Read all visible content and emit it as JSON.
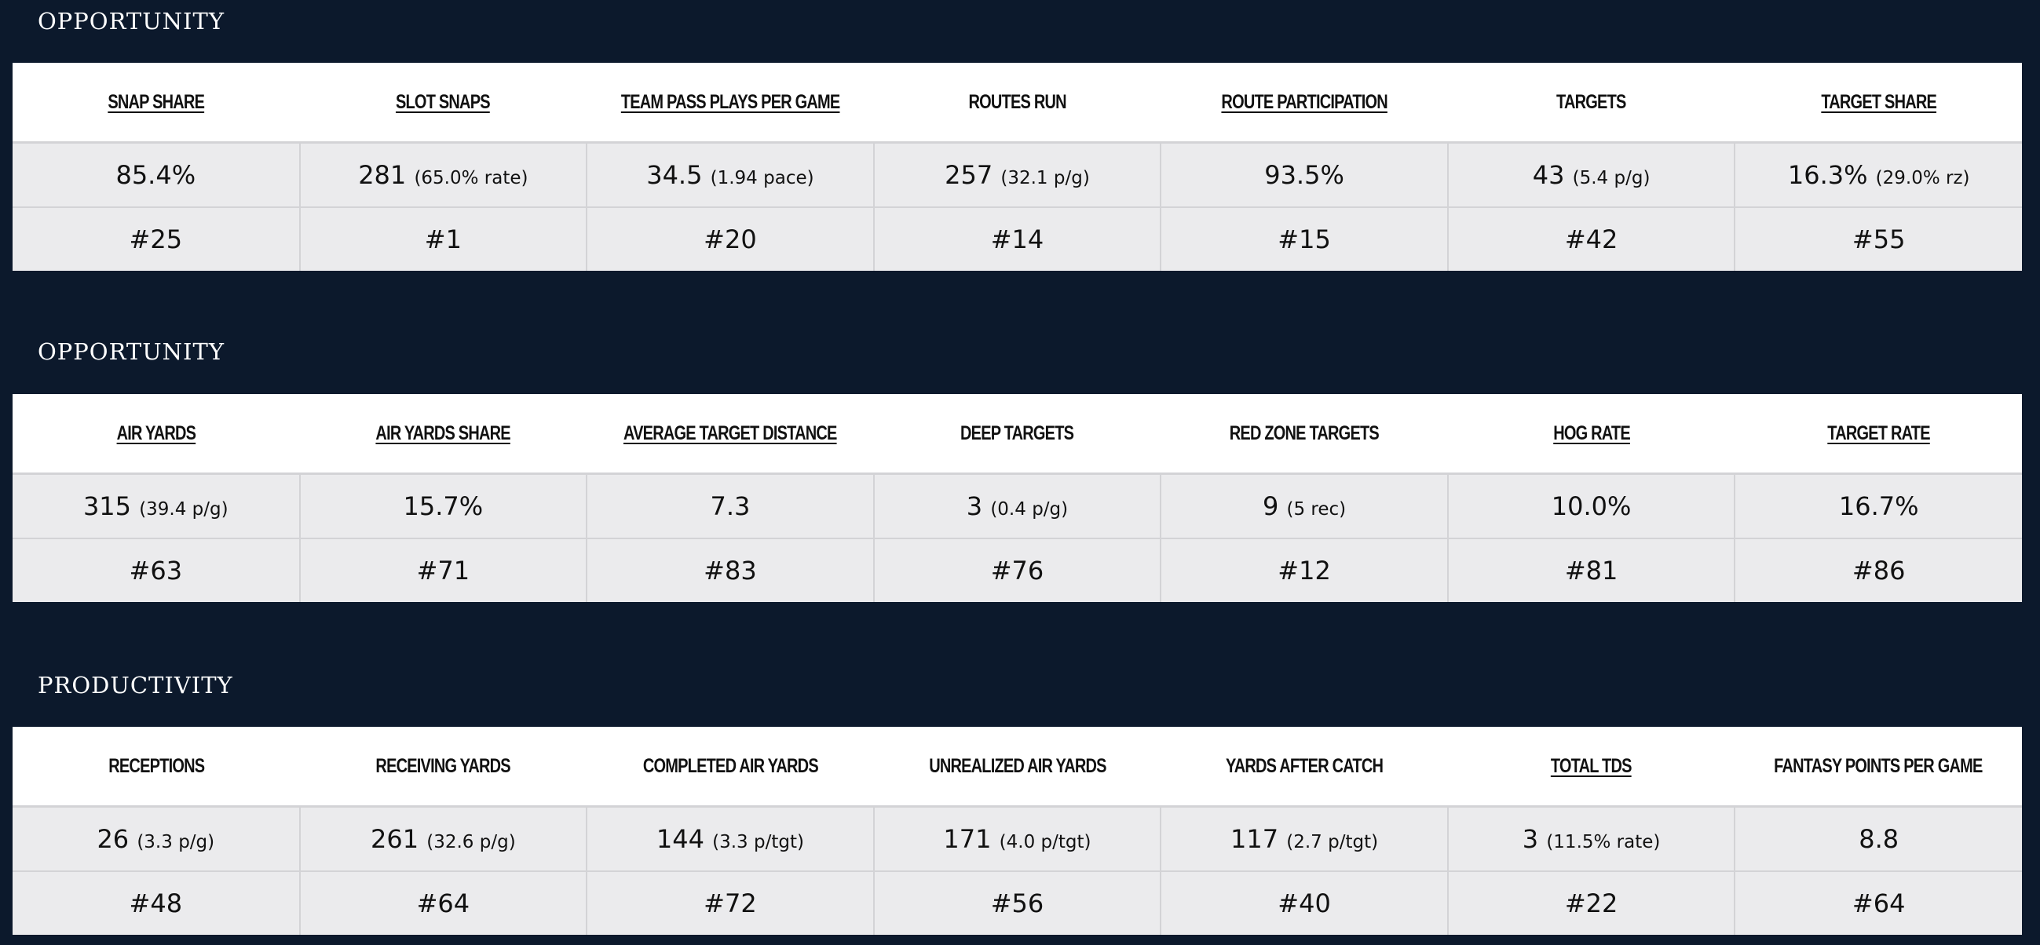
{
  "sections": [
    {
      "title": "OPPORTUNITY",
      "columns": [
        {
          "label": "SNAP SHARE",
          "underlined": true,
          "value": "85.4%",
          "detail": "",
          "rank": "#25"
        },
        {
          "label": "SLOT SNAPS",
          "underlined": true,
          "value": "281",
          "detail": "(65.0% rate)",
          "rank": "#1"
        },
        {
          "label": "TEAM PASS PLAYS PER GAME",
          "underlined": true,
          "value": "34.5",
          "detail": "(1.94 pace)",
          "rank": "#20"
        },
        {
          "label": "ROUTES RUN",
          "underlined": false,
          "value": "257",
          "detail": "(32.1 p/g)",
          "rank": "#14"
        },
        {
          "label": "ROUTE PARTICIPATION",
          "underlined": true,
          "value": "93.5%",
          "detail": "",
          "rank": "#15"
        },
        {
          "label": "TARGETS",
          "underlined": false,
          "value": "43",
          "detail": "(5.4 p/g)",
          "rank": "#42"
        },
        {
          "label": "TARGET SHARE",
          "underlined": true,
          "value": "16.3%",
          "detail": "(29.0% rz)",
          "rank": "#55"
        }
      ]
    },
    {
      "title": "OPPORTUNITY",
      "columns": [
        {
          "label": "AIR YARDS",
          "underlined": true,
          "value": "315",
          "detail": "(39.4 p/g)",
          "rank": "#63"
        },
        {
          "label": "AIR YARDS SHARE",
          "underlined": true,
          "value": "15.7%",
          "detail": "",
          "rank": "#71"
        },
        {
          "label": "AVERAGE TARGET DISTANCE",
          "underlined": true,
          "value": "7.3",
          "detail": "",
          "rank": "#83"
        },
        {
          "label": "DEEP TARGETS",
          "underlined": false,
          "value": "3",
          "detail": "(0.4 p/g)",
          "rank": "#76"
        },
        {
          "label": "RED ZONE TARGETS",
          "underlined": false,
          "value": "9",
          "detail": "(5 rec)",
          "rank": "#12"
        },
        {
          "label": "HOG RATE",
          "underlined": true,
          "value": "10.0%",
          "detail": "",
          "rank": "#81"
        },
        {
          "label": "TARGET RATE",
          "underlined": true,
          "value": "16.7%",
          "detail": "",
          "rank": "#86"
        }
      ]
    },
    {
      "title": "PRODUCTIVITY",
      "columns": [
        {
          "label": "RECEPTIONS",
          "underlined": false,
          "value": "26",
          "detail": "(3.3 p/g)",
          "rank": "#48"
        },
        {
          "label": "RECEIVING YARDS",
          "underlined": false,
          "value": "261",
          "detail": "(32.6 p/g)",
          "rank": "#64"
        },
        {
          "label": "COMPLETED AIR YARDS",
          "underlined": false,
          "value": "144",
          "detail": "(3.3 p/tgt)",
          "rank": "#72"
        },
        {
          "label": "UNREALIZED AIR YARDS",
          "underlined": false,
          "value": "171",
          "detail": "(4.0 p/tgt)",
          "rank": "#56"
        },
        {
          "label": "YARDS AFTER CATCH",
          "underlined": false,
          "value": "117",
          "detail": "(2.7 p/tgt)",
          "rank": "#40"
        },
        {
          "label": "TOTAL TDS",
          "underlined": true,
          "value": "3",
          "detail": "(11.5% rate)",
          "rank": "#22"
        },
        {
          "label": "FANTASY POINTS PER GAME",
          "underlined": false,
          "value": "8.8",
          "detail": "",
          "rank": "#64"
        }
      ]
    }
  ]
}
